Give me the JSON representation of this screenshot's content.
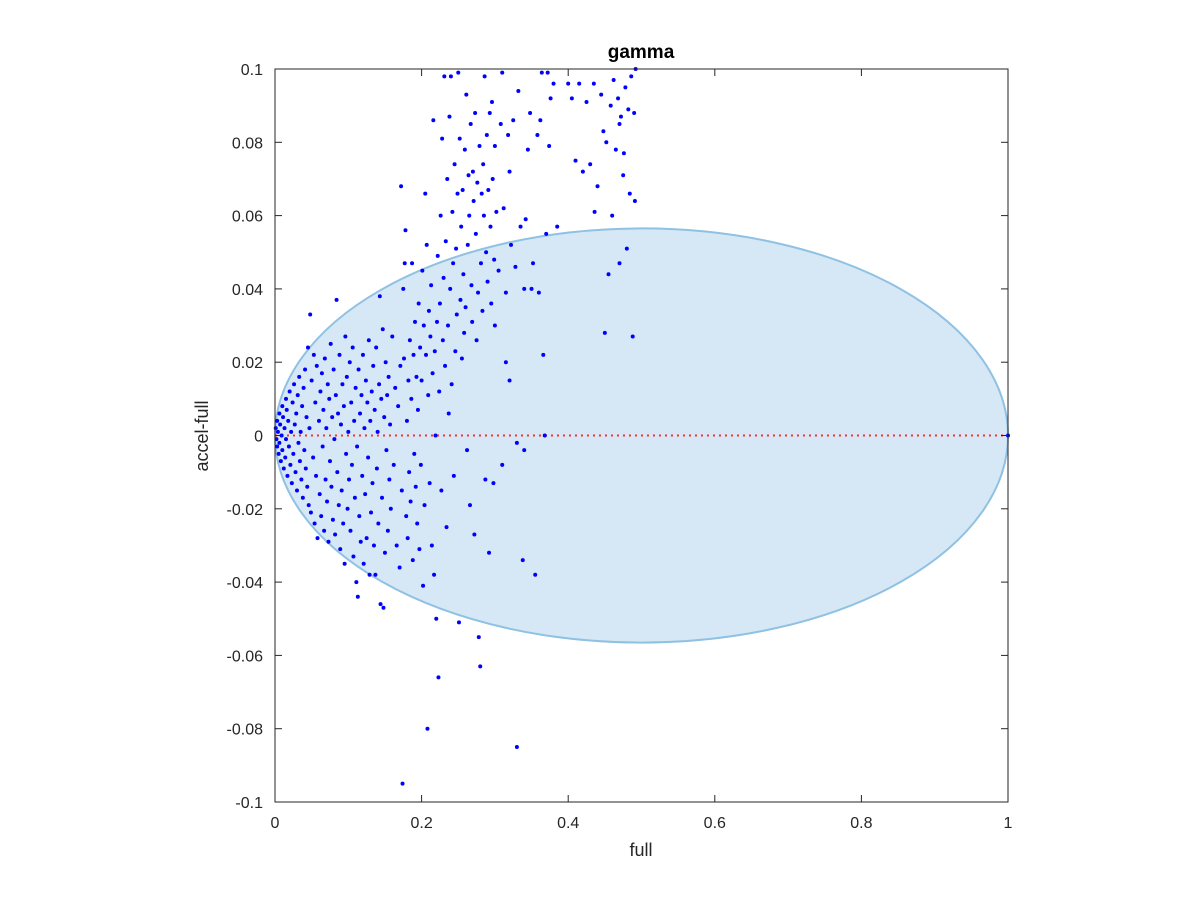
{
  "chart_data": {
    "type": "scatter",
    "title": "gamma",
    "xlabel": "full",
    "ylabel": "accel-full",
    "xlim": [
      0,
      1
    ],
    "ylim": [
      -0.1,
      0.1
    ],
    "xticks": [
      0,
      0.2,
      0.4,
      0.6,
      0.8,
      1
    ],
    "xtick_labels": [
      "0",
      "0.2",
      "0.4",
      "0.6",
      "0.8",
      "1"
    ],
    "yticks": [
      -0.1,
      -0.08,
      -0.06,
      -0.04,
      -0.02,
      0,
      0.02,
      0.04,
      0.06,
      0.08,
      0.1
    ],
    "ytick_labels": [
      "-0.1",
      "-0.08",
      "-0.06",
      "-0.04",
      "-0.02",
      "0",
      "0.02",
      "0.04",
      "0.06",
      "0.08",
      "0.1"
    ],
    "grid": false,
    "colors": {
      "points": "#0000ff",
      "ellipse_fill": "#d6e8f5",
      "ellipse_edge": "#8fc1e3",
      "zero_line": "#ff3030",
      "axes": "#262626"
    },
    "region": {
      "shape": "ellipse",
      "center": [
        0.5,
        0
      ],
      "x_half_range": 0.5,
      "y_half_range": 0.0565
    },
    "reference_line": {
      "y": 0,
      "style": "dotted"
    },
    "points": [
      [
        0.001,
        0.002
      ],
      [
        0.002,
        -0.001
      ],
      [
        0.003,
        0.004
      ],
      [
        0.003,
        -0.003
      ],
      [
        0.004,
        0.001
      ],
      [
        0.005,
        -0.005
      ],
      [
        0.006,
        0.006
      ],
      [
        0.006,
        -0.002
      ],
      [
        0.007,
        0.003
      ],
      [
        0.008,
        -0.007
      ],
      [
        0.009,
        0.0
      ],
      [
        0.01,
        0.008
      ],
      [
        0.01,
        -0.004
      ],
      [
        0.011,
        0.005
      ],
      [
        0.012,
        -0.009
      ],
      [
        0.013,
        0.002
      ],
      [
        0.014,
        -0.006
      ],
      [
        0.015,
        0.01
      ],
      [
        0.015,
        -0.001
      ],
      [
        0.016,
        0.007
      ],
      [
        0.017,
        -0.011
      ],
      [
        0.018,
        0.004
      ],
      [
        0.019,
        -0.003
      ],
      [
        0.02,
        0.012
      ],
      [
        0.021,
        -0.008
      ],
      [
        0.022,
        0.001
      ],
      [
        0.023,
        -0.013
      ],
      [
        0.024,
        0.009
      ],
      [
        0.025,
        -0.005
      ],
      [
        0.026,
        0.014
      ],
      [
        0.027,
        0.003
      ],
      [
        0.028,
        -0.01
      ],
      [
        0.029,
        0.006
      ],
      [
        0.03,
        -0.015
      ],
      [
        0.031,
        0.011
      ],
      [
        0.032,
        -0.002
      ],
      [
        0.033,
        0.016
      ],
      [
        0.034,
        -0.007
      ],
      [
        0.035,
        0.001
      ],
      [
        0.036,
        -0.012
      ],
      [
        0.037,
        0.008
      ],
      [
        0.038,
        -0.017
      ],
      [
        0.039,
        0.013
      ],
      [
        0.04,
        -0.004
      ],
      [
        0.041,
        0.018
      ],
      [
        0.042,
        -0.009
      ],
      [
        0.043,
        0.005
      ],
      [
        0.044,
        -0.014
      ],
      [
        0.045,
        0.024
      ],
      [
        0.046,
        -0.019
      ],
      [
        0.047,
        0.002
      ],
      [
        0.048,
        0.033
      ],
      [
        0.049,
        -0.021
      ],
      [
        0.05,
        0.015
      ],
      [
        0.052,
        -0.006
      ],
      [
        0.053,
        0.022
      ],
      [
        0.054,
        -0.024
      ],
      [
        0.055,
        0.009
      ],
      [
        0.056,
        -0.011
      ],
      [
        0.057,
        0.019
      ],
      [
        0.058,
        -0.028
      ],
      [
        0.06,
        0.004
      ],
      [
        0.061,
        -0.016
      ],
      [
        0.062,
        0.012
      ],
      [
        0.063,
        -0.022
      ],
      [
        0.064,
        0.017
      ],
      [
        0.065,
        -0.003
      ],
      [
        0.066,
        0.007
      ],
      [
        0.067,
        -0.026
      ],
      [
        0.068,
        0.021
      ],
      [
        0.069,
        -0.012
      ],
      [
        0.07,
        0.002
      ],
      [
        0.071,
        -0.018
      ],
      [
        0.072,
        0.014
      ],
      [
        0.073,
        -0.029
      ],
      [
        0.074,
        0.01
      ],
      [
        0.075,
        -0.007
      ],
      [
        0.076,
        0.025
      ],
      [
        0.077,
        -0.014
      ],
      [
        0.078,
        0.005
      ],
      [
        0.079,
        -0.023
      ],
      [
        0.08,
        0.018
      ],
      [
        0.081,
        -0.001
      ],
      [
        0.082,
        -0.027
      ],
      [
        0.083,
        0.011
      ],
      [
        0.084,
        0.037
      ],
      [
        0.085,
        -0.01
      ],
      [
        0.086,
        0.006
      ],
      [
        0.087,
        -0.019
      ],
      [
        0.088,
        0.022
      ],
      [
        0.089,
        -0.031
      ],
      [
        0.09,
        0.003
      ],
      [
        0.091,
        -0.015
      ],
      [
        0.092,
        0.014
      ],
      [
        0.093,
        -0.024
      ],
      [
        0.094,
        0.008
      ],
      [
        0.095,
        -0.035
      ],
      [
        0.096,
        0.027
      ],
      [
        0.097,
        -0.005
      ],
      [
        0.098,
        0.016
      ],
      [
        0.099,
        -0.02
      ],
      [
        0.1,
        0.001
      ],
      [
        0.101,
        -0.012
      ],
      [
        0.102,
        0.02
      ],
      [
        0.103,
        -0.026
      ],
      [
        0.104,
        0.009
      ],
      [
        0.105,
        -0.008
      ],
      [
        0.106,
        0.024
      ],
      [
        0.107,
        -0.033
      ],
      [
        0.108,
        0.004
      ],
      [
        0.109,
        -0.017
      ],
      [
        0.11,
        0.013
      ],
      [
        0.111,
        -0.04
      ],
      [
        0.112,
        -0.003
      ],
      [
        0.113,
        -0.044
      ],
      [
        0.114,
        0.018
      ],
      [
        0.115,
        -0.022
      ],
      [
        0.116,
        0.006
      ],
      [
        0.117,
        -0.029
      ],
      [
        0.118,
        0.011
      ],
      [
        0.119,
        -0.011
      ],
      [
        0.12,
        0.022
      ],
      [
        0.121,
        -0.035
      ],
      [
        0.122,
        0.002
      ],
      [
        0.123,
        -0.016
      ],
      [
        0.124,
        0.015
      ],
      [
        0.125,
        -0.028
      ],
      [
        0.126,
        0.009
      ],
      [
        0.127,
        -0.006
      ],
      [
        0.128,
        0.026
      ],
      [
        0.129,
        -0.038
      ],
      [
        0.13,
        0.004
      ],
      [
        0.131,
        -0.021
      ],
      [
        0.132,
        0.012
      ],
      [
        0.133,
        -0.013
      ],
      [
        0.134,
        0.019
      ],
      [
        0.135,
        -0.03
      ],
      [
        0.136,
        0.007
      ],
      [
        0.137,
        -0.038
      ],
      [
        0.138,
        0.024
      ],
      [
        0.139,
        -0.009
      ],
      [
        0.14,
        0.001
      ],
      [
        0.141,
        -0.024
      ],
      [
        0.142,
        0.014
      ],
      [
        0.143,
        0.038
      ],
      [
        0.144,
        -0.046
      ],
      [
        0.145,
        0.01
      ],
      [
        0.146,
        -0.017
      ],
      [
        0.147,
        0.029
      ],
      [
        0.148,
        -0.047
      ],
      [
        0.149,
        0.005
      ],
      [
        0.15,
        -0.032
      ],
      [
        0.151,
        0.02
      ],
      [
        0.152,
        -0.004
      ],
      [
        0.153,
        0.011
      ],
      [
        0.154,
        -0.026
      ],
      [
        0.155,
        0.016
      ],
      [
        0.156,
        -0.012
      ],
      [
        0.157,
        0.003
      ],
      [
        0.158,
        -0.02
      ],
      [
        0.16,
        0.027
      ],
      [
        0.162,
        -0.008
      ],
      [
        0.164,
        0.013
      ],
      [
        0.166,
        -0.03
      ],
      [
        0.168,
        0.008
      ],
      [
        0.17,
        -0.036
      ],
      [
        0.171,
        0.019
      ],
      [
        0.172,
        0.068
      ],
      [
        0.173,
        -0.015
      ],
      [
        0.174,
        -0.095
      ],
      [
        0.175,
        0.04
      ],
      [
        0.176,
        0.021
      ],
      [
        0.177,
        0.047
      ],
      [
        0.178,
        0.056
      ],
      [
        0.179,
        -0.022
      ],
      [
        0.18,
        0.004
      ],
      [
        0.181,
        -0.028
      ],
      [
        0.182,
        0.015
      ],
      [
        0.183,
        -0.01
      ],
      [
        0.184,
        0.026
      ],
      [
        0.185,
        -0.018
      ],
      [
        0.186,
        0.01
      ],
      [
        0.187,
        0.047
      ],
      [
        0.188,
        -0.034
      ],
      [
        0.189,
        0.022
      ],
      [
        0.19,
        -0.005
      ],
      [
        0.191,
        0.031
      ],
      [
        0.192,
        -0.014
      ],
      [
        0.193,
        0.016
      ],
      [
        0.194,
        -0.024
      ],
      [
        0.195,
        0.007
      ],
      [
        0.196,
        0.036
      ],
      [
        0.197,
        -0.031
      ],
      [
        0.198,
        0.024
      ],
      [
        0.199,
        -0.008
      ],
      [
        0.2,
        0.015
      ],
      [
        0.201,
        0.045
      ],
      [
        0.202,
        -0.041
      ],
      [
        0.203,
        0.03
      ],
      [
        0.204,
        -0.019
      ],
      [
        0.205,
        0.066
      ],
      [
        0.206,
        0.022
      ],
      [
        0.207,
        0.052
      ],
      [
        0.208,
        -0.08
      ],
      [
        0.209,
        0.011
      ],
      [
        0.21,
        0.034
      ],
      [
        0.211,
        -0.013
      ],
      [
        0.212,
        0.027
      ],
      [
        0.213,
        0.041
      ],
      [
        0.214,
        -0.03
      ],
      [
        0.215,
        0.017
      ],
      [
        0.216,
        0.086
      ],
      [
        0.217,
        -0.038
      ],
      [
        0.218,
        0.023
      ],
      [
        0.219,
        0.0
      ],
      [
        0.22,
        -0.05
      ],
      [
        0.221,
        0.031
      ],
      [
        0.222,
        0.049
      ],
      [
        0.223,
        -0.066
      ],
      [
        0.224,
        0.012
      ],
      [
        0.225,
        0.036
      ],
      [
        0.226,
        0.06
      ],
      [
        0.227,
        -0.015
      ],
      [
        0.228,
        0.081
      ],
      [
        0.229,
        0.026
      ],
      [
        0.23,
        0.043
      ],
      [
        0.231,
        0.098
      ],
      [
        0.232,
        0.019
      ],
      [
        0.233,
        0.053
      ],
      [
        0.234,
        -0.025
      ],
      [
        0.235,
        0.07
      ],
      [
        0.236,
        0.03
      ],
      [
        0.237,
        0.006
      ],
      [
        0.238,
        0.087
      ],
      [
        0.239,
        0.04
      ],
      [
        0.24,
        0.098
      ],
      [
        0.241,
        0.014
      ],
      [
        0.242,
        0.061
      ],
      [
        0.243,
        0.047
      ],
      [
        0.244,
        -0.011
      ],
      [
        0.245,
        0.074
      ],
      [
        0.246,
        0.023
      ],
      [
        0.247,
        0.051
      ],
      [
        0.248,
        0.033
      ],
      [
        0.249,
        0.066
      ],
      [
        0.25,
        0.099
      ],
      [
        0.251,
        -0.051
      ],
      [
        0.252,
        0.081
      ],
      [
        0.253,
        0.037
      ],
      [
        0.254,
        0.057
      ],
      [
        0.255,
        0.021
      ],
      [
        0.256,
        0.067
      ],
      [
        0.257,
        0.044
      ],
      [
        0.258,
        0.028
      ],
      [
        0.259,
        0.078
      ],
      [
        0.26,
        0.035
      ],
      [
        0.261,
        0.093
      ],
      [
        0.262,
        -0.004
      ],
      [
        0.263,
        0.052
      ],
      [
        0.264,
        0.071
      ],
      [
        0.265,
        0.06
      ],
      [
        0.266,
        -0.019
      ],
      [
        0.267,
        0.085
      ],
      [
        0.268,
        0.041
      ],
      [
        0.269,
        0.031
      ],
      [
        0.27,
        0.072
      ],
      [
        0.271,
        0.064
      ],
      [
        0.272,
        -0.027
      ],
      [
        0.273,
        0.088
      ],
      [
        0.274,
        0.055
      ],
      [
        0.275,
        0.026
      ],
      [
        0.276,
        0.069
      ],
      [
        0.277,
        0.039
      ],
      [
        0.278,
        -0.055
      ],
      [
        0.279,
        0.079
      ],
      [
        0.28,
        -0.063
      ],
      [
        0.281,
        0.047
      ],
      [
        0.282,
        0.066
      ],
      [
        0.283,
        0.034
      ],
      [
        0.284,
        0.074
      ],
      [
        0.285,
        0.06
      ],
      [
        0.286,
        0.098
      ],
      [
        0.287,
        -0.012
      ],
      [
        0.288,
        0.05
      ],
      [
        0.289,
        0.082
      ],
      [
        0.29,
        0.042
      ],
      [
        0.291,
        0.067
      ],
      [
        0.292,
        -0.032
      ],
      [
        0.293,
        0.088
      ],
      [
        0.294,
        0.057
      ],
      [
        0.295,
        0.036
      ],
      [
        0.296,
        0.091
      ],
      [
        0.297,
        0.07
      ],
      [
        0.298,
        -0.013
      ],
      [
        0.299,
        0.048
      ],
      [
        0.3,
        0.079
      ],
      [
        0.302,
        0.061
      ],
      [
        0.305,
        0.045
      ],
      [
        0.308,
        0.085
      ],
      [
        0.31,
        0.099
      ],
      [
        0.312,
        0.062
      ],
      [
        0.315,
        0.039
      ],
      [
        0.318,
        0.082
      ],
      [
        0.32,
        0.072
      ],
      [
        0.322,
        0.052
      ],
      [
        0.325,
        0.086
      ],
      [
        0.328,
        0.046
      ],
      [
        0.33,
        -0.085
      ],
      [
        0.332,
        0.094
      ],
      [
        0.335,
        0.057
      ],
      [
        0.338,
        -0.034
      ],
      [
        0.34,
        0.04
      ],
      [
        0.342,
        0.059
      ],
      [
        0.345,
        0.078
      ],
      [
        0.348,
        0.088
      ],
      [
        0.35,
        0.04
      ],
      [
        0.352,
        0.047
      ],
      [
        0.355,
        -0.038
      ],
      [
        0.358,
        0.082
      ],
      [
        0.36,
        0.039
      ],
      [
        0.362,
        0.086
      ],
      [
        0.364,
        0.099
      ],
      [
        0.366,
        0.022
      ],
      [
        0.368,
        0.0
      ],
      [
        0.37,
        0.055
      ],
      [
        0.372,
        0.099
      ],
      [
        0.374,
        0.079
      ],
      [
        0.376,
        0.092
      ],
      [
        0.38,
        0.096
      ],
      [
        0.385,
        0.057
      ],
      [
        0.33,
        -0.002
      ],
      [
        0.31,
        -0.008
      ],
      [
        0.32,
        0.015
      ],
      [
        0.34,
        -0.004
      ],
      [
        0.3,
        0.03
      ],
      [
        0.315,
        0.02
      ],
      [
        0.4,
        0.096
      ],
      [
        0.405,
        0.092
      ],
      [
        0.41,
        0.075
      ],
      [
        0.415,
        0.096
      ],
      [
        0.42,
        0.072
      ],
      [
        0.425,
        0.091
      ],
      [
        0.43,
        0.074
      ],
      [
        0.435,
        0.096
      ],
      [
        0.44,
        0.068
      ],
      [
        0.445,
        0.093
      ],
      [
        0.45,
        0.028
      ],
      [
        0.452,
        0.08
      ],
      [
        0.455,
        0.044
      ],
      [
        0.458,
        0.09
      ],
      [
        0.46,
        0.06
      ],
      [
        0.462,
        0.097
      ],
      [
        0.465,
        0.078
      ],
      [
        0.468,
        0.092
      ],
      [
        0.47,
        0.047
      ],
      [
        0.472,
        0.087
      ],
      [
        0.475,
        0.071
      ],
      [
        0.478,
        0.095
      ],
      [
        0.48,
        0.051
      ],
      [
        0.482,
        0.089
      ],
      [
        0.484,
        0.066
      ],
      [
        0.486,
        0.098
      ],
      [
        0.488,
        0.027
      ],
      [
        0.49,
        0.088
      ],
      [
        0.491,
        0.064
      ],
      [
        0.492,
        0.1
      ],
      [
        0.436,
        0.061
      ],
      [
        0.448,
        0.083
      ],
      [
        0.47,
        0.085
      ],
      [
        0.476,
        0.077
      ],
      [
        1.0,
        0.0
      ]
    ]
  }
}
